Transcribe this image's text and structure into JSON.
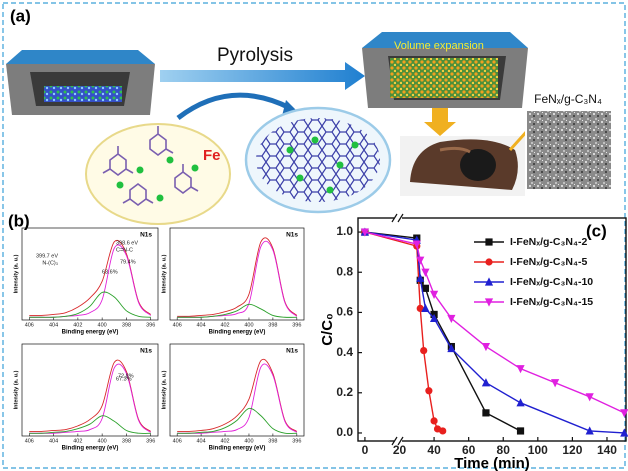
{
  "figure": {
    "panel_labels": [
      "(a)",
      "(b)",
      "(c)"
    ],
    "diagram": {
      "step": "Pyrolysis",
      "product_label": "Volume expansion",
      "element": "Fe",
      "material": "FeNₓ/g-C₃N₄"
    }
  },
  "chart_data": [
    {
      "type": "line",
      "smooth": true,
      "title": "N1s",
      "xlabel": "Binding energy (eV)",
      "ylabel": "Intensity (a. u.)",
      "x": [
        406,
        405,
        404,
        403,
        402,
        401,
        400,
        399,
        398,
        397,
        396
      ],
      "xlim": [
        406.6,
        395.4
      ],
      "xticks": [
        406,
        404,
        402,
        400,
        398,
        396
      ],
      "ylim": [
        0,
        1
      ],
      "series": [
        {
          "color": "#d8282a",
          "values": [
            0.05,
            0.05,
            0.06,
            0.08,
            0.14,
            0.24,
            0.42,
            0.85,
            0.72,
            0.2,
            0.06
          ]
        },
        {
          "color": "#e020d8",
          "values": [
            0.03,
            0.03,
            0.03,
            0.04,
            0.05,
            0.08,
            0.22,
            0.78,
            0.7,
            0.19,
            0.05
          ]
        },
        {
          "color": "#2aa02a",
          "values": [
            0.03,
            0.03,
            0.03,
            0.04,
            0.07,
            0.15,
            0.3,
            0.25,
            0.1,
            0.04,
            0.03
          ]
        }
      ],
      "annotations": [
        "398.6 eV",
        "C=N-C",
        "399.7 eV",
        "N-(C)₃",
        "63.6%"
      ]
    },
    {
      "type": "line",
      "smooth": true,
      "title": "N1s",
      "xlabel": "Binding energy (eV)",
      "ylabel": "Intensity (a. u.)",
      "x": [
        406,
        405,
        404,
        403,
        402,
        401,
        400,
        399,
        398,
        397,
        396
      ],
      "xlim": [
        406.6,
        395.4
      ],
      "xticks": [
        406,
        404,
        402,
        400,
        398,
        396
      ],
      "ylim": [
        0,
        1
      ],
      "series": [
        {
          "color": "#d8282a",
          "values": [
            0.04,
            0.04,
            0.05,
            0.06,
            0.09,
            0.14,
            0.28,
            0.85,
            0.78,
            0.2,
            0.05
          ]
        },
        {
          "color": "#e020d8",
          "values": [
            0.03,
            0.03,
            0.03,
            0.04,
            0.05,
            0.07,
            0.18,
            0.8,
            0.76,
            0.19,
            0.04
          ]
        },
        {
          "color": "#2aa02a",
          "values": [
            0.03,
            0.03,
            0.03,
            0.04,
            0.06,
            0.1,
            0.17,
            0.12,
            0.05,
            0.03,
            0.03
          ]
        }
      ],
      "annotations": [
        "79.4%"
      ]
    },
    {
      "type": "line",
      "smooth": true,
      "title": "N1s",
      "xlabel": "Binding energy (eV)",
      "ylabel": "Intensity (a. u.)",
      "x": [
        406,
        405,
        404,
        403,
        402,
        401,
        400,
        399,
        398,
        397,
        396
      ],
      "xlim": [
        406.6,
        395.4
      ],
      "xticks": [
        406,
        404,
        402,
        400,
        398,
        396
      ],
      "ylim": [
        0,
        1
      ],
      "series": [
        {
          "color": "#d8282a",
          "values": [
            0.05,
            0.05,
            0.06,
            0.07,
            0.11,
            0.18,
            0.33,
            0.8,
            0.7,
            0.18,
            0.05
          ]
        },
        {
          "color": "#e020d8",
          "values": [
            0.03,
            0.03,
            0.03,
            0.04,
            0.05,
            0.07,
            0.19,
            0.74,
            0.68,
            0.17,
            0.04
          ]
        },
        {
          "color": "#2aa02a",
          "values": [
            0.03,
            0.03,
            0.04,
            0.05,
            0.08,
            0.13,
            0.22,
            0.16,
            0.06,
            0.03,
            0.03
          ]
        }
      ],
      "annotations": [
        "72.8%"
      ]
    },
    {
      "type": "line",
      "smooth": true,
      "title": "N1s",
      "xlabel": "Binding energy (eV)",
      "ylabel": "Intensity (a. u.)",
      "x": [
        406,
        405,
        404,
        403,
        402,
        401,
        400,
        399,
        398,
        397,
        396
      ],
      "xlim": [
        406.6,
        395.4
      ],
      "xticks": [
        406,
        404,
        402,
        400,
        398,
        396
      ],
      "ylim": [
        0,
        1
      ],
      "series": [
        {
          "color": "#d8282a",
          "values": [
            0.05,
            0.05,
            0.06,
            0.08,
            0.13,
            0.22,
            0.4,
            0.82,
            0.68,
            0.17,
            0.05
          ]
        },
        {
          "color": "#e020d8",
          "values": [
            0.03,
            0.03,
            0.03,
            0.04,
            0.05,
            0.07,
            0.2,
            0.75,
            0.66,
            0.16,
            0.04
          ]
        },
        {
          "color": "#2aa02a",
          "values": [
            0.03,
            0.03,
            0.04,
            0.05,
            0.09,
            0.17,
            0.3,
            0.22,
            0.08,
            0.03,
            0.03
          ]
        }
      ],
      "annotations": [
        "67.3%"
      ]
    },
    {
      "type": "line",
      "xlabel": "Time (min)",
      "ylabel": "C/C₀",
      "xlim": [
        -4,
        151
      ],
      "xticks": [
        0,
        20,
        40,
        60,
        80,
        100,
        120,
        140
      ],
      "ylim": [
        -0.04,
        1.07
      ],
      "yticks": [
        {
          "value": 0,
          "label": "0.0"
        },
        0.2,
        0.4,
        0.6,
        0.8,
        {
          "value": 1,
          "label": "1.0"
        }
      ],
      "legend": "upper right",
      "series": [
        {
          "name": "I-FeNₓ/g-C₃N₄-2",
          "color": "#111111",
          "marker": "square",
          "x": [
            0,
            30,
            32,
            35,
            40,
            50,
            70,
            90
          ],
          "values": [
            1.0,
            0.97,
            0.76,
            0.72,
            0.59,
            0.43,
            0.1,
            0.01
          ]
        },
        {
          "name": "I-FeNₓ/g-C₃N₄-5",
          "color": "#e8201e",
          "marker": "circle",
          "x": [
            0,
            30,
            32,
            34,
            37,
            40,
            42,
            45
          ],
          "values": [
            1.0,
            0.93,
            0.62,
            0.41,
            0.21,
            0.06,
            0.02,
            0.01
          ]
        },
        {
          "name": "I-FeNₓ/g-C₃N₄-10",
          "color": "#2020d0",
          "marker": "triangle",
          "x": [
            0,
            30,
            32,
            35,
            40,
            50,
            70,
            90,
            130,
            150
          ],
          "values": [
            1.0,
            0.96,
            0.77,
            0.62,
            0.57,
            0.42,
            0.25,
            0.15,
            0.01,
            0.0
          ]
        },
        {
          "name": "I-FeNₓ/g-C₃N₄-15",
          "color": "#e020e0",
          "marker": "triangle-down",
          "x": [
            0,
            30,
            32,
            35,
            40,
            50,
            70,
            90,
            110,
            130,
            150
          ],
          "values": [
            1.0,
            0.94,
            0.86,
            0.8,
            0.69,
            0.57,
            0.43,
            0.32,
            0.25,
            0.18,
            0.1
          ]
        }
      ]
    }
  ]
}
